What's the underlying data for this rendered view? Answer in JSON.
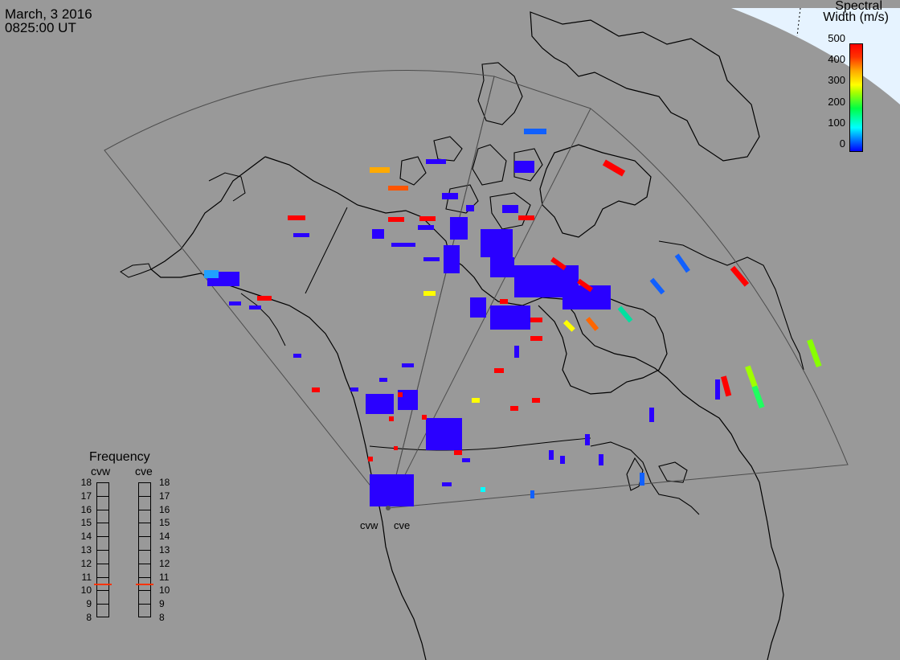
{
  "header": {
    "date": "March, 3 2016",
    "time": "0825:00 UT"
  },
  "colorbar": {
    "title_line1": "Spectral",
    "title_line2": "Width (m/s)",
    "ticks": [
      "500",
      "400",
      "300",
      "200",
      "100",
      "0"
    ]
  },
  "frequency_panel": {
    "title": "Frequency",
    "radars": [
      "cvw",
      "cve"
    ],
    "scale": [
      "18",
      "17",
      "16",
      "15",
      "14",
      "13",
      "12",
      "11",
      "10",
      "9",
      "8"
    ],
    "selected_mhz": [
      10.5,
      10.5
    ],
    "marker_color": "#ff3300"
  },
  "stations": [
    {
      "name": "cvw"
    },
    {
      "name": "cve"
    }
  ],
  "colors": {
    "background": "#999999",
    "coastline": "#000000",
    "fov_outline": "#4d4d4d",
    "daylight": "#e6f3ff",
    "station_dot": "#555555"
  }
}
